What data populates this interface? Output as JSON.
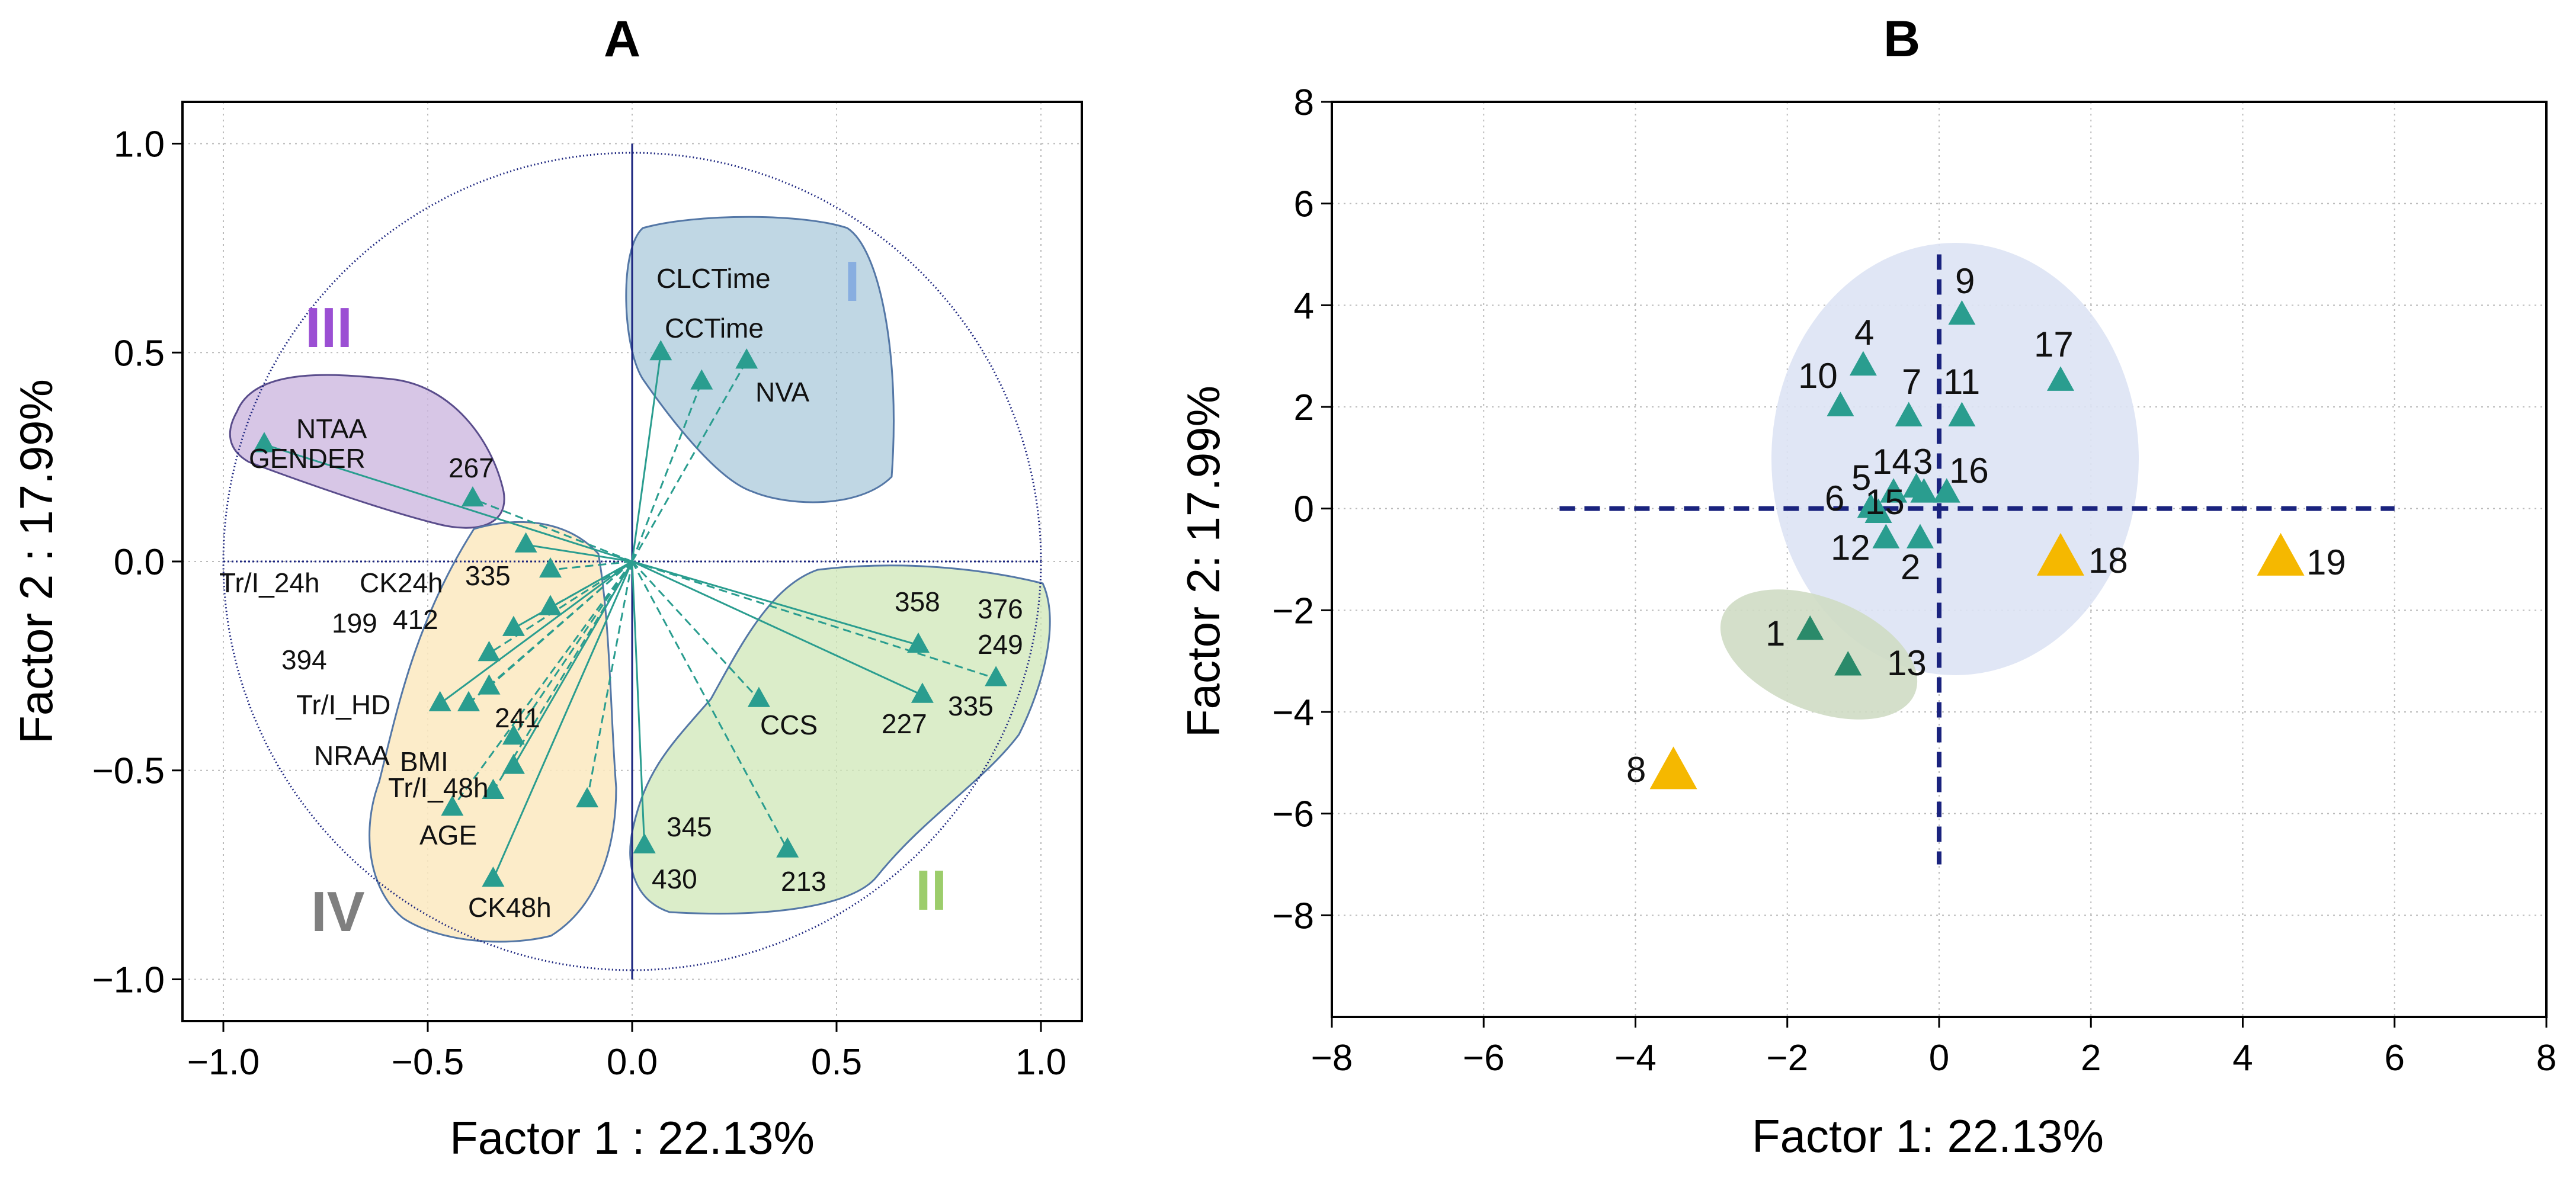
{
  "chart_data": [
    {
      "type": "scatter",
      "subtype": "pca-loadings",
      "title": "A",
      "xlabel": "Factor 1 : 22.13%",
      "ylabel": "Factor 2 : 17.99%",
      "xlim": [
        -1.1,
        1.1
      ],
      "ylim": [
        -1.1,
        1.1
      ],
      "xticks": [
        -1.0,
        -0.5,
        0.0,
        0.5,
        1.0
      ],
      "xtick_labels": [
        "−1.0",
        "−0.5",
        "0.0",
        "0.5",
        "1.0"
      ],
      "yticks": [
        1.0,
        0.5,
        0.0,
        -0.5,
        -1.0
      ],
      "ytick_labels": [
        "1.0",
        "0.5",
        "0.0",
        "−0.5",
        "−1.0"
      ],
      "grid": true,
      "unit_circle": true,
      "marker_color": "#2a9d8f",
      "groups": [
        {
          "label": "I",
          "color": "#88aee0",
          "fill": "#9ec1d6"
        },
        {
          "label": "II",
          "color": "#9ccd6b",
          "fill": "#cfe7b7"
        },
        {
          "label": "III",
          "color": "#9b4fd3",
          "fill": "#cdb8e0"
        },
        {
          "label": "IV",
          "color": "#7f7f7f",
          "fill": "#fbe9bf"
        }
      ],
      "points": [
        {
          "label": "CLCTime",
          "x": 0.07,
          "y": 0.5,
          "group": "I"
        },
        {
          "label": "CCTime",
          "x": 0.17,
          "y": 0.43,
          "group": "I"
        },
        {
          "label": "NVA",
          "x": 0.28,
          "y": 0.48,
          "group": "I"
        },
        {
          "label": "NTAA",
          "x": -0.9,
          "y": 0.28,
          "group": "III"
        },
        {
          "label": "GENDER",
          "x": -0.9,
          "y": 0.28,
          "group": "III"
        },
        {
          "label": "267",
          "x": -0.39,
          "y": 0.15,
          "group": "III"
        },
        {
          "label": "358",
          "x": 0.7,
          "y": -0.2,
          "group": "II"
        },
        {
          "label": "376",
          "x": 0.89,
          "y": -0.28,
          "group": "II"
        },
        {
          "label": "249",
          "x": 0.89,
          "y": -0.28,
          "group": "II"
        },
        {
          "label": "227",
          "x": 0.71,
          "y": -0.32,
          "group": "II"
        },
        {
          "label": "335",
          "x": 0.71,
          "y": -0.32,
          "group": "II"
        },
        {
          "label": "CCS",
          "x": 0.31,
          "y": -0.33,
          "group": "II"
        },
        {
          "label": "345",
          "x": 0.03,
          "y": -0.68,
          "group": "II"
        },
        {
          "label": "430",
          "x": 0.03,
          "y": -0.68,
          "group": "II"
        },
        {
          "label": "213",
          "x": 0.38,
          "y": -0.69,
          "group": "II"
        },
        {
          "label": "Tr/I_24h",
          "x": -0.26,
          "y": 0.04,
          "group": "IV"
        },
        {
          "label": "CK24h",
          "x": -0.2,
          "y": -0.02,
          "group": "IV"
        },
        {
          "label": "335",
          "x": -0.2,
          "y": -0.11,
          "group": "IV"
        },
        {
          "label": "199",
          "x": -0.29,
          "y": -0.16,
          "group": "IV"
        },
        {
          "label": "412",
          "x": -0.35,
          "y": -0.22,
          "group": "IV"
        },
        {
          "label": "394",
          "x": -0.35,
          "y": -0.3,
          "group": "IV"
        },
        {
          "label": "Tr/I_HD",
          "x": -0.47,
          "y": -0.34,
          "group": "IV"
        },
        {
          "label": "241",
          "x": -0.4,
          "y": -0.34,
          "group": "IV"
        },
        {
          "label": "NRAA",
          "x": -0.29,
          "y": -0.42,
          "group": "IV"
        },
        {
          "label": "BMI",
          "x": -0.29,
          "y": -0.49,
          "group": "IV"
        },
        {
          "label": "Tr/I_48h",
          "x": -0.34,
          "y": -0.55,
          "group": "IV"
        },
        {
          "label": "AGE",
          "x": -0.44,
          "y": -0.59,
          "group": "IV"
        },
        {
          "label": "CK48h",
          "x": -0.34,
          "y": -0.76,
          "group": "IV"
        },
        {
          "label": "",
          "x": -0.11,
          "y": -0.57,
          "group": "IV"
        }
      ]
    },
    {
      "type": "scatter",
      "subtype": "pca-scores",
      "title": "B",
      "xlabel": "Factor 1: 22.13%",
      "ylabel": "Factor 2: 17.99%",
      "xlim": [
        -8,
        8
      ],
      "ylim": [
        -10,
        8
      ],
      "xticks": [
        -8,
        -6,
        -4,
        -2,
        0,
        2,
        4,
        6,
        8
      ],
      "xtick_labels": [
        "−8",
        "−6",
        "−4",
        "−2",
        "0",
        "2",
        "4",
        "6",
        "8"
      ],
      "yticks": [
        8,
        6,
        4,
        2,
        0,
        -2,
        -4,
        -6,
        -8
      ],
      "ytick_labels": [
        "8",
        "6",
        "4",
        "2",
        "0",
        "−2",
        "−4",
        "−6",
        "−8"
      ],
      "grid": true,
      "reference_lines": {
        "x": 0,
        "y": 0,
        "color": "#1a237e",
        "style": "dashed"
      },
      "colors": {
        "teal": "#2a9d8f",
        "dark": "#2a8a6a",
        "yellow": "#f5b800",
        "cluster_blue": "#dde3f4",
        "cluster_green": "#cfdcc4"
      },
      "points": [
        {
          "label": "9",
          "x": 0.3,
          "y": 3.8,
          "color": "teal"
        },
        {
          "label": "4",
          "x": -1.0,
          "y": 2.8,
          "color": "teal"
        },
        {
          "label": "17",
          "x": 1.6,
          "y": 2.5,
          "color": "teal"
        },
        {
          "label": "10",
          "x": -1.3,
          "y": 2.0,
          "color": "teal"
        },
        {
          "label": "7",
          "x": -0.4,
          "y": 1.8,
          "color": "teal"
        },
        {
          "label": "11",
          "x": 0.3,
          "y": 1.8,
          "color": "teal"
        },
        {
          "label": "5",
          "x": -0.6,
          "y": 0.3,
          "color": "teal"
        },
        {
          "label": "14",
          "x": -0.3,
          "y": 0.4,
          "color": "teal"
        },
        {
          "label": "3",
          "x": -0.2,
          "y": 0.3,
          "color": "teal"
        },
        {
          "label": "16",
          "x": 0.1,
          "y": 0.3,
          "color": "teal"
        },
        {
          "label": "6",
          "x": -0.9,
          "y": 0.0,
          "color": "teal"
        },
        {
          "label": "15",
          "x": -0.8,
          "y": -0.1,
          "color": "teal"
        },
        {
          "label": "12",
          "x": -0.7,
          "y": -0.6,
          "color": "teal"
        },
        {
          "label": "2",
          "x": -0.25,
          "y": -0.6,
          "color": "teal"
        },
        {
          "label": "1",
          "x": -1.7,
          "y": -2.4,
          "color": "dark"
        },
        {
          "label": "13",
          "x": -1.2,
          "y": -3.1,
          "color": "dark"
        },
        {
          "label": "8",
          "x": -3.5,
          "y": -5.2,
          "color": "yellow"
        },
        {
          "label": "18",
          "x": 1.6,
          "y": -1.0,
          "color": "yellow"
        },
        {
          "label": "19",
          "x": 4.5,
          "y": -1.0,
          "color": "yellow"
        }
      ]
    }
  ]
}
